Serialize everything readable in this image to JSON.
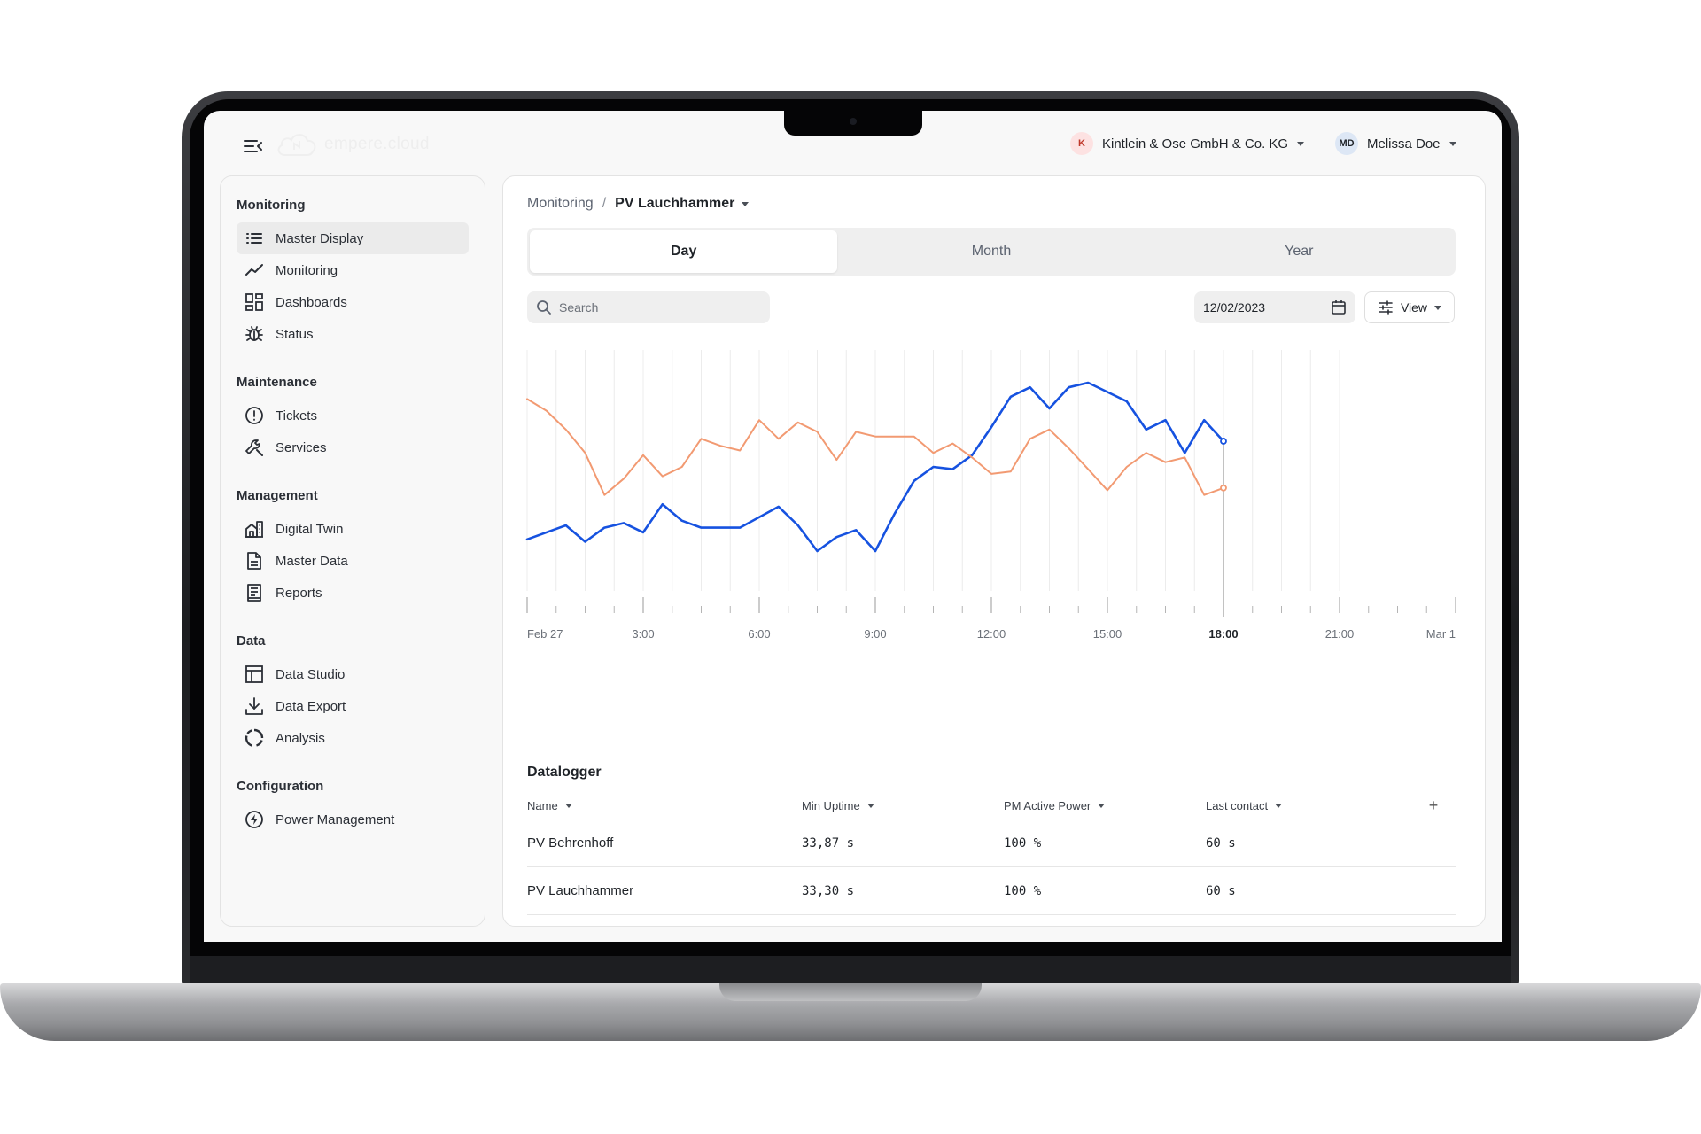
{
  "app": {
    "logo_text": "empere.cloud",
    "organization": {
      "initial": "K",
      "name": "Kintlein & Ose GmbH & Co. KG"
    },
    "user": {
      "initials": "MD",
      "name": "Melissa Doe"
    }
  },
  "sidebar": {
    "sections": [
      {
        "title": "Monitoring",
        "items": [
          {
            "label": "Master Display",
            "icon": "list-icon",
            "active": true
          },
          {
            "label": "Monitoring",
            "icon": "trend-icon"
          },
          {
            "label": "Dashboards",
            "icon": "dashboard-icon"
          },
          {
            "label": "Status",
            "icon": "bug-icon"
          }
        ]
      },
      {
        "title": "Maintenance",
        "items": [
          {
            "label": "Tickets",
            "icon": "alert-circle-icon"
          },
          {
            "label": "Services",
            "icon": "wrench-icon"
          }
        ]
      },
      {
        "title": "Management",
        "items": [
          {
            "label": "Digital Twin",
            "icon": "building-icon"
          },
          {
            "label": "Master Data",
            "icon": "document-icon"
          },
          {
            "label": "Reports",
            "icon": "report-icon"
          }
        ]
      },
      {
        "title": "Data",
        "items": [
          {
            "label": "Data Studio",
            "icon": "table-icon"
          },
          {
            "label": "Data Export",
            "icon": "download-icon"
          },
          {
            "label": "Analysis",
            "icon": "ring-icon"
          }
        ]
      },
      {
        "title": "Configuration",
        "items": [
          {
            "label": "Power Management",
            "icon": "bolt-icon"
          }
        ]
      }
    ]
  },
  "main": {
    "breadcrumb": {
      "root": "Monitoring",
      "separator": "/",
      "current": "PV Lauchhammer"
    },
    "tabs": [
      {
        "label": "Day",
        "active": true
      },
      {
        "label": "Month"
      },
      {
        "label": "Year"
      }
    ],
    "search": {
      "placeholder": "Search",
      "value": ""
    },
    "date": "12/02/2023",
    "view_label": "View",
    "datalogger": {
      "title": "Datalogger",
      "columns": [
        "Name",
        "Min Uptime",
        "PM Active Power",
        "Last contact"
      ],
      "add_label": "+",
      "rows": [
        {
          "name": "PV Behrenhoff",
          "uptime": "33,87 s",
          "power": "100 %",
          "contact": "60 s"
        },
        {
          "name": "PV Lauchhammer",
          "uptime": "33,30 s",
          "power": "100 %",
          "contact": "60 s"
        }
      ]
    }
  },
  "chart_data": {
    "type": "line",
    "x_ticks": [
      "Feb 27",
      "3:00",
      "6:00",
      "9:00",
      "12:00",
      "15:00",
      "18:00",
      "21:00",
      "Mar 1"
    ],
    "active_tick": "18:00",
    "x_range_hours": [
      0,
      24
    ],
    "y_range": [
      0,
      100
    ],
    "grid": "vertical",
    "colors": {
      "blue": "#1652e0",
      "orange": "#f29a72",
      "cursor": "#9a9a9a"
    },
    "cursor_hour": 18,
    "series": [
      {
        "color": "blue",
        "points": [
          [
            0,
            19
          ],
          [
            1,
            25
          ],
          [
            1.5,
            18
          ],
          [
            2,
            24
          ],
          [
            2.5,
            26
          ],
          [
            3,
            22
          ],
          [
            3.5,
            34
          ],
          [
            4,
            27
          ],
          [
            4.5,
            24
          ],
          [
            5.5,
            24
          ],
          [
            6.5,
            33
          ],
          [
            7,
            25
          ],
          [
            7.5,
            14
          ],
          [
            8,
            20
          ],
          [
            8.5,
            23
          ],
          [
            9,
            14
          ],
          [
            9.5,
            30
          ],
          [
            10,
            44
          ],
          [
            10.5,
            50
          ],
          [
            11,
            49
          ],
          [
            11.5,
            55
          ],
          [
            12,
            67
          ],
          [
            12.5,
            80
          ],
          [
            13,
            84
          ],
          [
            13.5,
            75
          ],
          [
            14,
            84
          ],
          [
            14.5,
            86
          ],
          [
            15,
            82
          ],
          [
            15.5,
            78
          ],
          [
            16,
            66
          ],
          [
            16.5,
            70
          ],
          [
            17,
            56
          ],
          [
            17.5,
            70
          ],
          [
            18,
            61
          ]
        ]
      },
      {
        "color": "orange",
        "points": [
          [
            0,
            79
          ],
          [
            0.5,
            74
          ],
          [
            1,
            66
          ],
          [
            1.5,
            56
          ],
          [
            2,
            38
          ],
          [
            2.5,
            45
          ],
          [
            3,
            55
          ],
          [
            3.5,
            46
          ],
          [
            4,
            50
          ],
          [
            4.5,
            62
          ],
          [
            5,
            59
          ],
          [
            5.5,
            57
          ],
          [
            6,
            70
          ],
          [
            6.5,
            62
          ],
          [
            7,
            69
          ],
          [
            7.5,
            65
          ],
          [
            8,
            53
          ],
          [
            8.5,
            65
          ],
          [
            9,
            63
          ],
          [
            10,
            63
          ],
          [
            10.5,
            56
          ],
          [
            11,
            60
          ],
          [
            11.5,
            54
          ],
          [
            12,
            47
          ],
          [
            12.5,
            48
          ],
          [
            13,
            62
          ],
          [
            13.5,
            66
          ],
          [
            14,
            58
          ],
          [
            14.5,
            49
          ],
          [
            15,
            40
          ],
          [
            15.5,
            50
          ],
          [
            16,
            56
          ],
          [
            16.5,
            52
          ],
          [
            17,
            54
          ],
          [
            17.5,
            38
          ],
          [
            18,
            41
          ]
        ]
      }
    ]
  }
}
